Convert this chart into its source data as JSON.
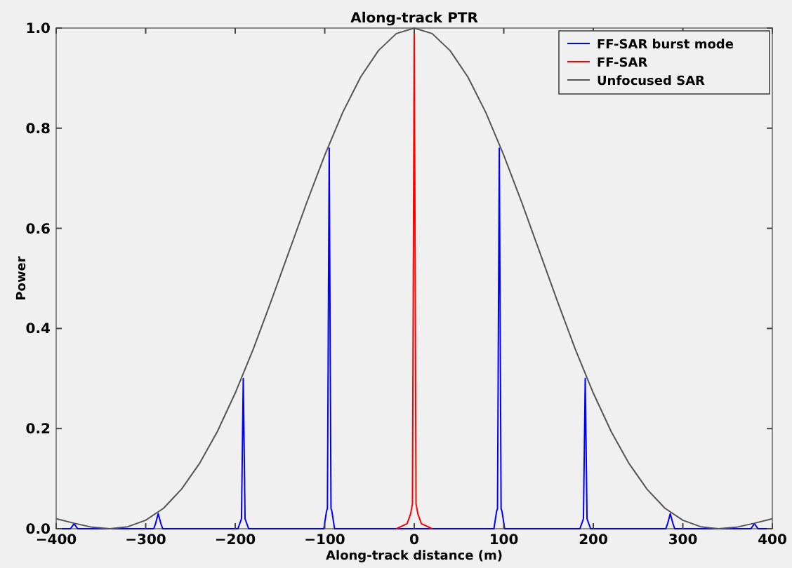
{
  "chart_data": {
    "type": "line",
    "title": "Along-track PTR",
    "xlabel": "Along-track distance (m)",
    "ylabel": "Power",
    "xlim": [
      -400,
      400
    ],
    "ylim": [
      0,
      1
    ],
    "xticks": [
      -400,
      -300,
      -200,
      -100,
      0,
      100,
      200,
      300,
      400
    ],
    "yticks": [
      {
        "value": 0,
        "label": "0.0"
      },
      {
        "value": 0.2,
        "label": "0.2"
      },
      {
        "value": 0.4,
        "label": "0.4"
      },
      {
        "value": 0.6,
        "label": "0.6"
      },
      {
        "value": 0.8,
        "label": "0.8"
      },
      {
        "value": 1,
        "label": "1.0"
      }
    ],
    "grid": false,
    "legend": "top right",
    "marker": "none",
    "line_style": "solid",
    "series": [
      {
        "name": "FF-SAR burst mode",
        "color": "#0000ff",
        "x": [
          -400,
          -384,
          -380,
          -376,
          -291,
          -289,
          -286,
          -283,
          -281,
          -197,
          -194,
          -193,
          -191,
          -189,
          -188,
          -185,
          -101,
          -98,
          -97,
          -95,
          -93,
          -92,
          -89,
          89,
          92,
          93,
          95,
          97,
          98,
          101,
          185,
          188,
          189,
          191,
          193,
          194,
          197,
          281,
          283,
          286,
          289,
          291,
          376,
          380,
          384,
          400
        ],
        "values": [
          0,
          0,
          0.01,
          0,
          0,
          0.01,
          0.03,
          0.01,
          0,
          0,
          0.015,
          0.02,
          0.3,
          0.02,
          0.015,
          0,
          0,
          0.035,
          0.04,
          0.76,
          0.04,
          0.035,
          0,
          0,
          0.035,
          0.04,
          0.76,
          0.04,
          0.035,
          0,
          0,
          0.015,
          0.02,
          0.3,
          0.02,
          0.015,
          0,
          0,
          0.01,
          0.03,
          0.01,
          0,
          0,
          0.01,
          0,
          0
        ]
      },
      {
        "name": "FF-SAR",
        "color": "#ff0000",
        "x": [
          -20,
          -8,
          -4,
          -2,
          0,
          2,
          4,
          8,
          20
        ],
        "values": [
          0,
          0.01,
          0.03,
          0.05,
          1,
          0.05,
          0.03,
          0.01,
          0
        ]
      },
      {
        "name": "Unfocused SAR",
        "color": "#555555",
        "x": [
          -400,
          -380,
          -360,
          -340,
          -320,
          -300,
          -280,
          -260,
          -240,
          -220,
          -200,
          -180,
          -160,
          -140,
          -120,
          -100,
          -80,
          -60,
          -40,
          -20,
          0,
          20,
          40,
          60,
          80,
          100,
          120,
          140,
          160,
          180,
          200,
          220,
          240,
          260,
          280,
          300,
          320,
          340,
          360,
          380,
          400
        ],
        "values": [
          0.02,
          0.011,
          0.003,
          0,
          0.004,
          0.017,
          0.041,
          0.079,
          0.13,
          0.194,
          0.271,
          0.358,
          0.454,
          0.553,
          0.652,
          0.746,
          0.831,
          0.902,
          0.955,
          0.989,
          1,
          0.989,
          0.955,
          0.902,
          0.831,
          0.746,
          0.652,
          0.553,
          0.454,
          0.358,
          0.271,
          0.194,
          0.13,
          0.079,
          0.041,
          0.017,
          0.004,
          0,
          0.003,
          0.011,
          0.02
        ]
      }
    ]
  }
}
